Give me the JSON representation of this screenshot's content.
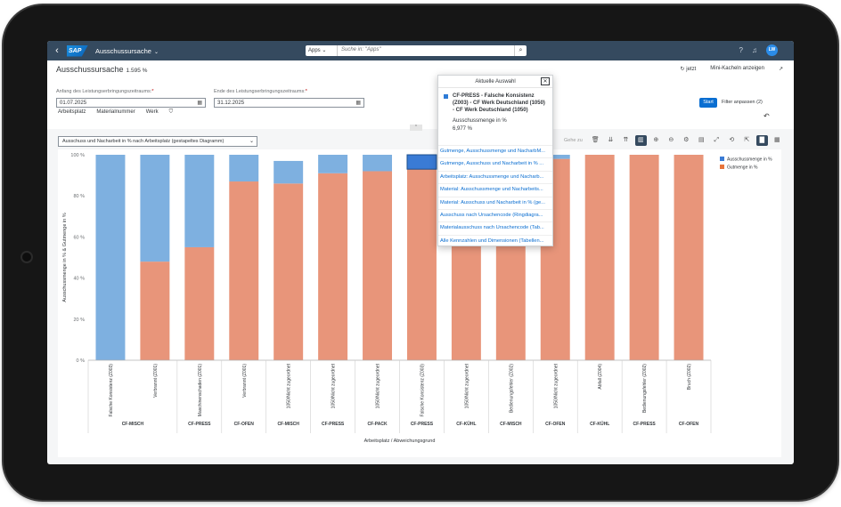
{
  "shell": {
    "logo_text": "SAP",
    "app_title": "Ausschussursache",
    "search_scope": "Apps",
    "search_placeholder": "Suche in: \"Apps\"",
    "avatar_initials": "LW"
  },
  "header": {
    "title": "Ausschussursache",
    "count": "1.595 %",
    "action_now": "jetzt",
    "action_tiles": "Mini-Kacheln anzeigen"
  },
  "filters": {
    "start_label": "Anfang des Leistungserbringungszeitraums:",
    "start_value": "01.07.2025",
    "end_label": "Ende des Leistungserbringungszeitraums:",
    "end_value": "31.12.2025",
    "links": [
      "Arbeitsplatz",
      "Materialnummer",
      "Werk"
    ],
    "start_button": "Start",
    "adapt_button": "Filter anpassen (2)"
  },
  "chart_selector": "Ausschuss und Nacharbeit in % nach Arbeitsplatz (gestapeltes Diagramm)",
  "toolbar": {
    "goto": "Gehe zu"
  },
  "popover": {
    "title": "Aktuelle Auswahl",
    "selection": "CF-PRESS - Falsche Konsistenz (Z003) - CF Werk Deutschland (1050) - CF Werk Deutschland (1050)",
    "measure": "Ausschussmenge in %",
    "value": "6,977 %",
    "links": [
      "Gutmenge, Ausschussmenge und NacharbM...",
      "Gutmenge, Ausschuss und Nacharbeit in % ...",
      "Arbeitsplatz: Ausschussmenge und Nacharb...",
      "Material: Ausschussmenge und Nacharbeits...",
      "Material: Ausschuss und Nacharbeit in % (ge...",
      "Ausschuss nach Ursachencode (Ringdiagra...",
      "Materialausschuss nach Ursachencode (Tab...",
      "Alle Kennzahlen und Dimensionen (Tabellen..."
    ]
  },
  "chart_data": {
    "type": "bar",
    "stacked": true,
    "ylabel": "Ausschussmenge in % & Gutmenge in %",
    "xlabel": "Arbeitsplatz / Abweichungsgrund",
    "yticks": [
      "0 %",
      "20 %",
      "40 %",
      "60 %",
      "80 %",
      "100 %"
    ],
    "ylim": [
      0,
      100
    ],
    "grid": false,
    "legend_position": "top-right",
    "categories": [
      "Falsche Konsistenz (Z003)",
      "Verbrannt (Z001)",
      "Maschinenschaden (Z001)",
      "Verbrannt (Z001)",
      "1050/Nicht zugeordnet",
      "1050/Nicht zugeordnet",
      "1050/Nicht zugeordnet",
      "Falsche Konsistenz (Z003)",
      "1050/Nicht zugeordnet",
      "Bedienungsfehler (Z002)",
      "1050/Nicht zugeordnet",
      "Abfall (Z004)",
      "Bedienungsfehler (Z002)",
      "Bruch (Z002)"
    ],
    "groups": [
      {
        "label": "CF-MISCH",
        "span": 2
      },
      {
        "label": "CF-PRESS",
        "span": 1
      },
      {
        "label": "CF-OFEN",
        "span": 1
      },
      {
        "label": "CF-MISCH",
        "span": 1
      },
      {
        "label": "CF-PRESS",
        "span": 1
      },
      {
        "label": "CF-PACK",
        "span": 1
      },
      {
        "label": "CF-PRESS",
        "span": 1
      },
      {
        "label": "CF-KÜHL",
        "span": 1
      },
      {
        "label": "CF-MISCH",
        "span": 1
      },
      {
        "label": "CF-OFEN",
        "span": 1
      },
      {
        "label": "CF-KÜHL",
        "span": 1
      },
      {
        "label": "CF-PRESS",
        "span": 1
      },
      {
        "label": "CF-OFEN",
        "span": 1
      }
    ],
    "series": [
      {
        "name": "Gutmenge in %",
        "color": "#e8957a",
        "values": [
          0,
          48,
          55,
          87,
          86,
          91,
          92,
          93,
          96,
          97,
          98,
          100,
          100,
          100
        ]
      },
      {
        "name": "Ausschussmenge in %",
        "color": "#7eb0e0",
        "values": [
          100,
          52,
          45,
          13,
          11,
          9,
          8,
          7,
          4,
          3,
          2,
          0,
          0,
          0
        ]
      }
    ],
    "highlight_index": 7,
    "highlight_color": "#3a7bd5"
  }
}
